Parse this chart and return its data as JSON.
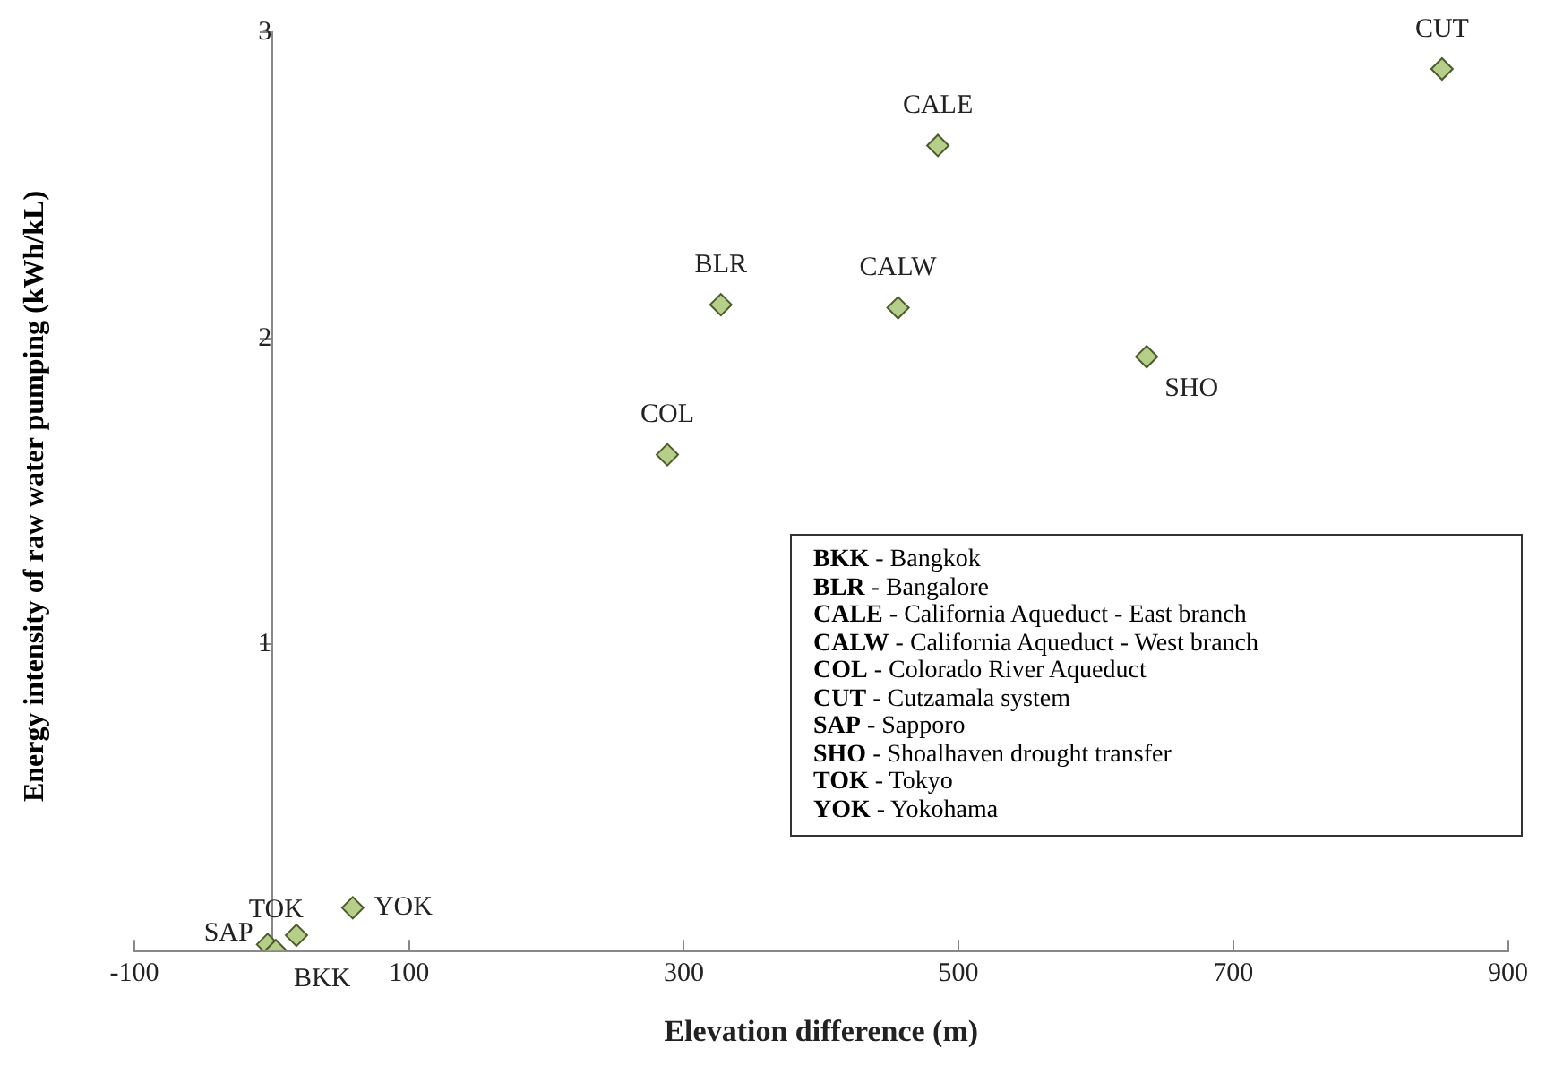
{
  "chart_data": {
    "type": "scatter",
    "xlabel": "Elevation difference (m)",
    "ylabel": "Energy intensity of raw water pumping  (kWh/kL)",
    "x": [
      852,
      485,
      327,
      456,
      637,
      288,
      -3,
      3,
      18,
      59
    ],
    "values": [
      2.88,
      2.63,
      2.11,
      2.1,
      1.94,
      1.62,
      0.02,
      0,
      0.05,
      0.14
    ],
    "color": "#b5cf8a",
    "marker": "diamond",
    "legend": false,
    "grid": false,
    "xlim": [
      -100,
      900
    ],
    "xticks": [
      -100,
      100,
      300,
      500,
      700,
      900
    ],
    "ylim": [
      0,
      3
    ],
    "yticks": [
      1,
      2,
      3
    ],
    "annotations": [
      {
        "text": "CUT",
        "x": 852,
        "y": 2.88
      },
      {
        "text": "CALE",
        "x": 485,
        "y": 2.63
      },
      {
        "text": "BLR",
        "x": 327,
        "y": 2.11
      },
      {
        "text": "CALW",
        "x": 456,
        "y": 2.1
      },
      {
        "text": "SHO",
        "x": 637,
        "y": 1.94
      },
      {
        "text": "COL",
        "x": 288,
        "y": 1.62
      },
      {
        "text": "SAP",
        "x": -3,
        "y": 0.02
      },
      {
        "text": "BKK",
        "x": 3,
        "y": 0
      },
      {
        "text": "TOK",
        "x": 18,
        "y": 0.05
      },
      {
        "text": "YOK",
        "x": 59,
        "y": 0.14
      },
      "BKK - Bangkok",
      "BLR - Bangalore",
      "CALE - California Aqueduct - East branch",
      "CALW - California Aqueduct - West branch",
      "COL - Colorado River Aqueduct",
      "CUT - Cutzamala system",
      "SAP - Sapporo",
      "SHO - Shoalhaven drought transfer",
      "TOK - Tokyo",
      "YOK - Yokohama"
    ]
  }
}
